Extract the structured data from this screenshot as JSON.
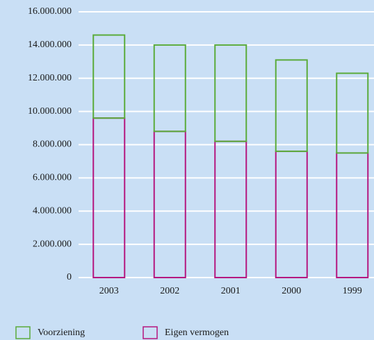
{
  "chart_data": {
    "type": "stacked-bar",
    "categories": [
      "2003",
      "2002",
      "2001",
      "2000",
      "1999"
    ],
    "series": [
      {
        "name": "Voorziening",
        "color": "#5aab3a",
        "values": [
          5000000,
          5200000,
          5800000,
          5500000,
          4800000
        ]
      },
      {
        "name": "Eigen vermogen",
        "color": "#b5177f",
        "values": [
          9600000,
          8800000,
          8200000,
          7600000,
          7500000
        ]
      }
    ],
    "ylim": [
      0,
      16000000
    ],
    "yticks": [
      0,
      {
        "value": 2000000,
        "label": "2.000.000"
      },
      {
        "value": 4000000,
        "label": "4.000.000"
      },
      {
        "value": 6000000,
        "label": "6.000.000"
      },
      {
        "value": 8000000,
        "label": "8.000.000"
      },
      {
        "value": 10000000,
        "label": "10.000.000"
      },
      {
        "value": 12000000,
        "label": "12.000.000"
      },
      {
        "value": 14000000,
        "label": "14.000.000"
      },
      {
        "value": 16000000,
        "label": "16.000.000"
      }
    ],
    "grid": true
  }
}
